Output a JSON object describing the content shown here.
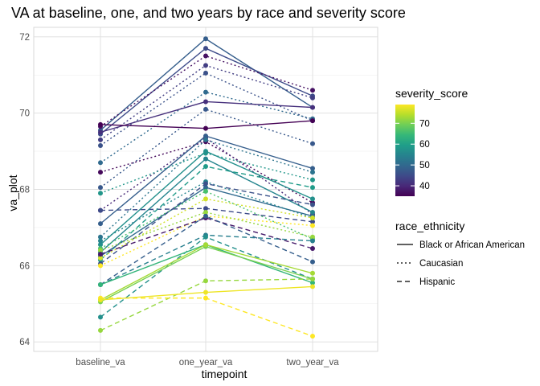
{
  "chart_data": {
    "type": "line",
    "title": "VA at baseline, one, and two years by race and severity score",
    "xlabel": "timepoint",
    "ylabel": "va_plot",
    "categories": [
      "baseline_va",
      "one_year_va",
      "two_year_va"
    ],
    "ylim": [
      63.75,
      72.25
    ],
    "yticks": [
      64,
      66,
      68,
      70,
      72
    ],
    "grid": true,
    "legend_position": "right",
    "colors": {
      "viridis": [
        "#440154",
        "#482878",
        "#3e4a89",
        "#31688e",
        "#26828e",
        "#1f9e89",
        "#35b779",
        "#6ece58",
        "#b5de2b",
        "#fde725"
      ],
      "grid_major": "#dedede",
      "grid_minor": "#f0f0f0",
      "panel_border": "#d9d9d9"
    },
    "color_legend": {
      "title": "severity_score",
      "min": 35,
      "max": 79,
      "ticks": [
        40,
        50,
        60,
        70
      ]
    },
    "linetype_legend": {
      "title": "race_ethnicity",
      "entries": [
        {
          "label": "Black or African American",
          "dash": "solid"
        },
        {
          "label": "Caucasian",
          "dash": "dotted"
        },
        {
          "label": "Hispanic",
          "dash": "dashed"
        }
      ]
    },
    "series": [
      {
        "values": [
          69.55,
          71.95,
          70.15
        ],
        "severity": 48,
        "race": "Black or African American"
      },
      {
        "values": [
          69.45,
          71.7,
          70.45
        ],
        "severity": 45,
        "race": "Black or African American"
      },
      {
        "values": [
          69.65,
          71.5,
          70.6
        ],
        "severity": 37,
        "race": "Caucasian"
      },
      {
        "values": [
          69.3,
          71.25,
          70.4
        ],
        "severity": 43,
        "race": "Caucasian"
      },
      {
        "values": [
          69.15,
          71.05,
          69.8
        ],
        "severity": 46,
        "race": "Caucasian"
      },
      {
        "values": [
          68.7,
          70.55,
          69.85
        ],
        "severity": 50,
        "race": "Caucasian"
      },
      {
        "values": [
          68.05,
          70.1,
          69.2
        ],
        "severity": 47,
        "race": "Caucasian"
      },
      {
        "values": [
          69.5,
          70.3,
          70.15
        ],
        "severity": 41,
        "race": "Black or African American"
      },
      {
        "values": [
          69.7,
          69.6,
          69.8
        ],
        "severity": 35,
        "race": "Black or African American"
      },
      {
        "values": [
          68.45,
          69.25,
          67.65
        ],
        "severity": 36,
        "race": "Caucasian"
      },
      {
        "values": [
          67.45,
          69.35,
          67.35
        ],
        "severity": 40,
        "race": "Caucasian"
      },
      {
        "values": [
          67.45,
          67.5,
          67.15
        ],
        "severity": 45,
        "race": "Hispanic"
      },
      {
        "values": [
          67.1,
          69.4,
          68.55
        ],
        "severity": 48,
        "race": "Black or African American"
      },
      {
        "values": [
          66.75,
          69.3,
          68.45
        ],
        "severity": 52,
        "race": "Caucasian"
      },
      {
        "values": [
          67.9,
          68.95,
          68.25
        ],
        "severity": 58,
        "race": "Caucasian"
      },
      {
        "values": [
          66.55,
          69.0,
          67.75
        ],
        "severity": 57,
        "race": "Black or African American"
      },
      {
        "values": [
          66.35,
          68.8,
          67.4
        ],
        "severity": 55,
        "race": "Black or African American"
      },
      {
        "values": [
          66.15,
          68.6,
          68.05
        ],
        "severity": 59,
        "race": "Hispanic"
      },
      {
        "values": [
          66.25,
          68.05,
          67.3
        ],
        "severity": 50,
        "race": "Black or African American"
      },
      {
        "values": [
          66.65,
          68.2,
          67.25
        ],
        "severity": 55,
        "race": "Caucasian"
      },
      {
        "values": [
          66.45,
          67.95,
          66.7
        ],
        "severity": 66,
        "race": "Caucasian"
      },
      {
        "values": [
          66.05,
          68.15,
          67.6
        ],
        "severity": 46,
        "race": "Hispanic"
      },
      {
        "values": [
          66.2,
          67.75,
          67.25
        ],
        "severity": 76,
        "race": "Caucasian"
      },
      {
        "values": [
          66.0,
          67.3,
          67.05
        ],
        "severity": 79,
        "race": "Caucasian"
      },
      {
        "values": [
          66.4,
          67.4,
          66.75
        ],
        "severity": 72,
        "race": "Caucasian"
      },
      {
        "values": [
          66.3,
          67.25,
          66.45
        ],
        "severity": 38,
        "race": "Hispanic"
      },
      {
        "values": [
          65.5,
          67.3,
          66.1
        ],
        "severity": 48,
        "race": "Hispanic"
      },
      {
        "values": [
          65.5,
          66.8,
          66.65
        ],
        "severity": 54,
        "race": "Hispanic"
      },
      {
        "values": [
          64.65,
          66.75,
          65.65
        ],
        "severity": 57,
        "race": "Hispanic"
      },
      {
        "values": [
          65.5,
          66.55,
          65.55
        ],
        "severity": 64,
        "race": "Black or African American"
      },
      {
        "values": [
          65.05,
          66.5,
          65.65
        ],
        "severity": 70,
        "race": "Black or African American"
      },
      {
        "values": [
          65.1,
          66.55,
          65.8
        ],
        "severity": 73,
        "race": "Black or African American"
      },
      {
        "values": [
          64.3,
          65.6,
          65.65
        ],
        "severity": 72,
        "race": "Hispanic"
      },
      {
        "values": [
          65.15,
          65.15,
          64.15
        ],
        "severity": 79,
        "race": "Hispanic"
      },
      {
        "values": [
          65.1,
          65.3,
          65.45
        ],
        "severity": 78,
        "race": "Black or African American"
      }
    ]
  }
}
